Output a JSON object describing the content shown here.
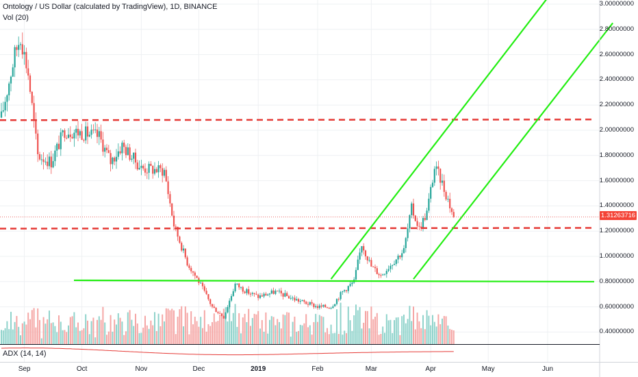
{
  "header": {
    "title": "Ontology / US Dollar (calculated by TradingView), 1D, BINANCE",
    "volume_label": "Vol (20)"
  },
  "price_badge": "1.31263716",
  "adx_label": "ADX (14, 14)",
  "colors": {
    "up": "#26a69a",
    "down": "#ef5350",
    "up_volume": "#8fd3cb",
    "down_volume": "#f5a6a5",
    "trend_green": "#22ee11",
    "level_red": "#e53935",
    "adx_line": "#e53935"
  },
  "chart_data": {
    "type": "candlestick",
    "symbol": "Ontology / US Dollar",
    "interval": "1D",
    "exchange": "BINANCE",
    "y_axis": {
      "range": [
        0.3,
        3.0
      ],
      "ticks": [
        "3.00000000",
        "2.80000000",
        "2.60000000",
        "2.40000000",
        "2.20000000",
        "2.00000000",
        "1.80000000",
        "1.60000000",
        "1.40000000",
        "1.20000000",
        "1.00000000",
        "0.80000000",
        "0.60000000",
        "0.40000000"
      ],
      "tick_values": [
        3.0,
        2.8,
        2.6,
        2.4,
        2.2,
        2.0,
        1.8,
        1.6,
        1.4,
        1.2,
        1.0,
        0.8,
        0.6,
        0.4
      ]
    },
    "x_axis": {
      "ticks": [
        {
          "label": "Sep",
          "date": "2018-09-01"
        },
        {
          "label": "Oct",
          "date": "2018-10-01"
        },
        {
          "label": "Nov",
          "date": "2018-11-01"
        },
        {
          "label": "Dec",
          "date": "2018-12-01"
        },
        {
          "label": "2019",
          "date": "2019-01-01",
          "bold": true
        },
        {
          "label": "Feb",
          "date": "2019-02-01"
        },
        {
          "label": "Mar",
          "date": "2019-03-01"
        },
        {
          "label": "Apr",
          "date": "2019-04-01"
        },
        {
          "label": "May",
          "date": "2019-05-01"
        },
        {
          "label": "Jun",
          "date": "2019-06-01"
        }
      ]
    },
    "current_price": 1.31263716,
    "price_key_points": [
      {
        "date": "2018-08-20",
        "close": 2.1
      },
      {
        "date": "2018-08-27",
        "close": 2.6
      },
      {
        "date": "2018-08-30",
        "close": 2.75
      },
      {
        "date": "2018-09-03",
        "close": 2.45
      },
      {
        "date": "2018-09-08",
        "close": 1.8
      },
      {
        "date": "2018-09-15",
        "close": 1.75
      },
      {
        "date": "2018-09-22",
        "close": 2.0
      },
      {
        "date": "2018-10-01",
        "close": 1.98
      },
      {
        "date": "2018-10-10",
        "close": 1.95
      },
      {
        "date": "2018-10-16",
        "close": 1.75
      },
      {
        "date": "2018-10-22",
        "close": 1.88
      },
      {
        "date": "2018-11-01",
        "close": 1.7
      },
      {
        "date": "2018-11-13",
        "close": 1.68
      },
      {
        "date": "2018-11-18",
        "close": 1.25
      },
      {
        "date": "2018-11-25",
        "close": 0.95
      },
      {
        "date": "2018-12-01",
        "close": 0.8
      },
      {
        "date": "2018-12-08",
        "close": 0.6
      },
      {
        "date": "2018-12-14",
        "close": 0.52
      },
      {
        "date": "2018-12-20",
        "close": 0.78
      },
      {
        "date": "2018-12-26",
        "close": 0.72
      },
      {
        "date": "2019-01-01",
        "close": 0.68
      },
      {
        "date": "2019-01-10",
        "close": 0.72
      },
      {
        "date": "2019-01-20",
        "close": 0.66
      },
      {
        "date": "2019-02-01",
        "close": 0.6
      },
      {
        "date": "2019-02-08",
        "close": 0.6
      },
      {
        "date": "2019-02-14",
        "close": 0.72
      },
      {
        "date": "2019-02-20",
        "close": 0.8
      },
      {
        "date": "2019-02-24",
        "close": 1.1
      },
      {
        "date": "2019-03-01",
        "close": 0.92
      },
      {
        "date": "2019-03-06",
        "close": 0.85
      },
      {
        "date": "2019-03-12",
        "close": 0.95
      },
      {
        "date": "2019-03-18",
        "close": 1.05
      },
      {
        "date": "2019-03-22",
        "close": 1.38
      },
      {
        "date": "2019-03-26",
        "close": 1.22
      },
      {
        "date": "2019-03-30",
        "close": 1.35
      },
      {
        "date": "2019-04-03",
        "close": 1.7
      },
      {
        "date": "2019-04-06",
        "close": 1.62
      },
      {
        "date": "2019-04-10",
        "close": 1.45
      },
      {
        "date": "2019-04-13",
        "close": 1.31
      }
    ],
    "annotations": [
      {
        "type": "horizontal",
        "style": "dashed",
        "color": "red",
        "price": 2.08
      },
      {
        "type": "horizontal",
        "style": "dashed",
        "color": "red",
        "price": 1.22
      },
      {
        "type": "horizontal",
        "style": "solid",
        "color": "green",
        "price": 0.81
      },
      {
        "type": "trendline",
        "style": "solid",
        "color": "green",
        "from": {
          "date": "2019-02-08",
          "price": 0.82
        },
        "to": {
          "date": "2019-06-01",
          "price": 3.05
        }
      },
      {
        "type": "trendline",
        "style": "solid",
        "color": "green",
        "from": {
          "date": "2019-03-23",
          "price": 0.82
        },
        "to": {
          "date": "2019-07-05",
          "price": 2.85
        }
      }
    ],
    "grid": true
  }
}
